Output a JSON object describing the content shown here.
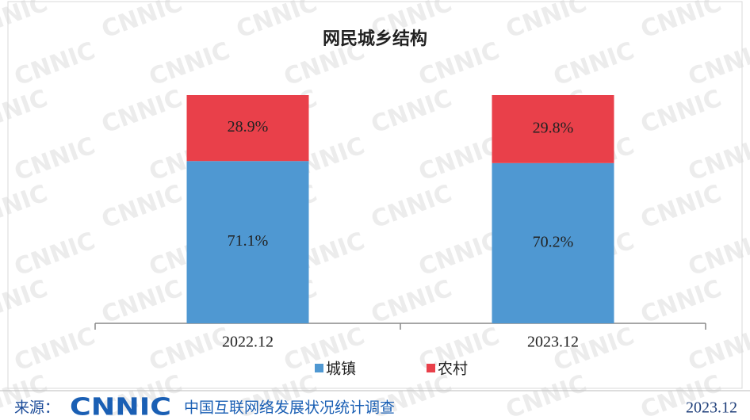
{
  "chart_data": {
    "type": "stacked_bar",
    "title": "网民城乡结构",
    "categories": [
      "2022.12",
      "2023.12"
    ],
    "series": [
      {
        "name": "城镇",
        "color": "#4f98d2",
        "values": [
          71.1,
          70.2
        ],
        "value_labels": [
          "71.1%",
          "70.2%"
        ]
      },
      {
        "name": "农村",
        "color": "#e9404a",
        "values": [
          28.9,
          29.8
        ],
        "value_labels": [
          "28.9%",
          "29.8%"
        ]
      }
    ],
    "ylim": [
      0,
      100
    ],
    "legend": "bottom"
  },
  "watermark": "CNNIC",
  "footer": {
    "source_label": "来源：",
    "logo": "CNNIC",
    "org": "中国互联网络发展状况统计调查",
    "date": "2023.12"
  }
}
